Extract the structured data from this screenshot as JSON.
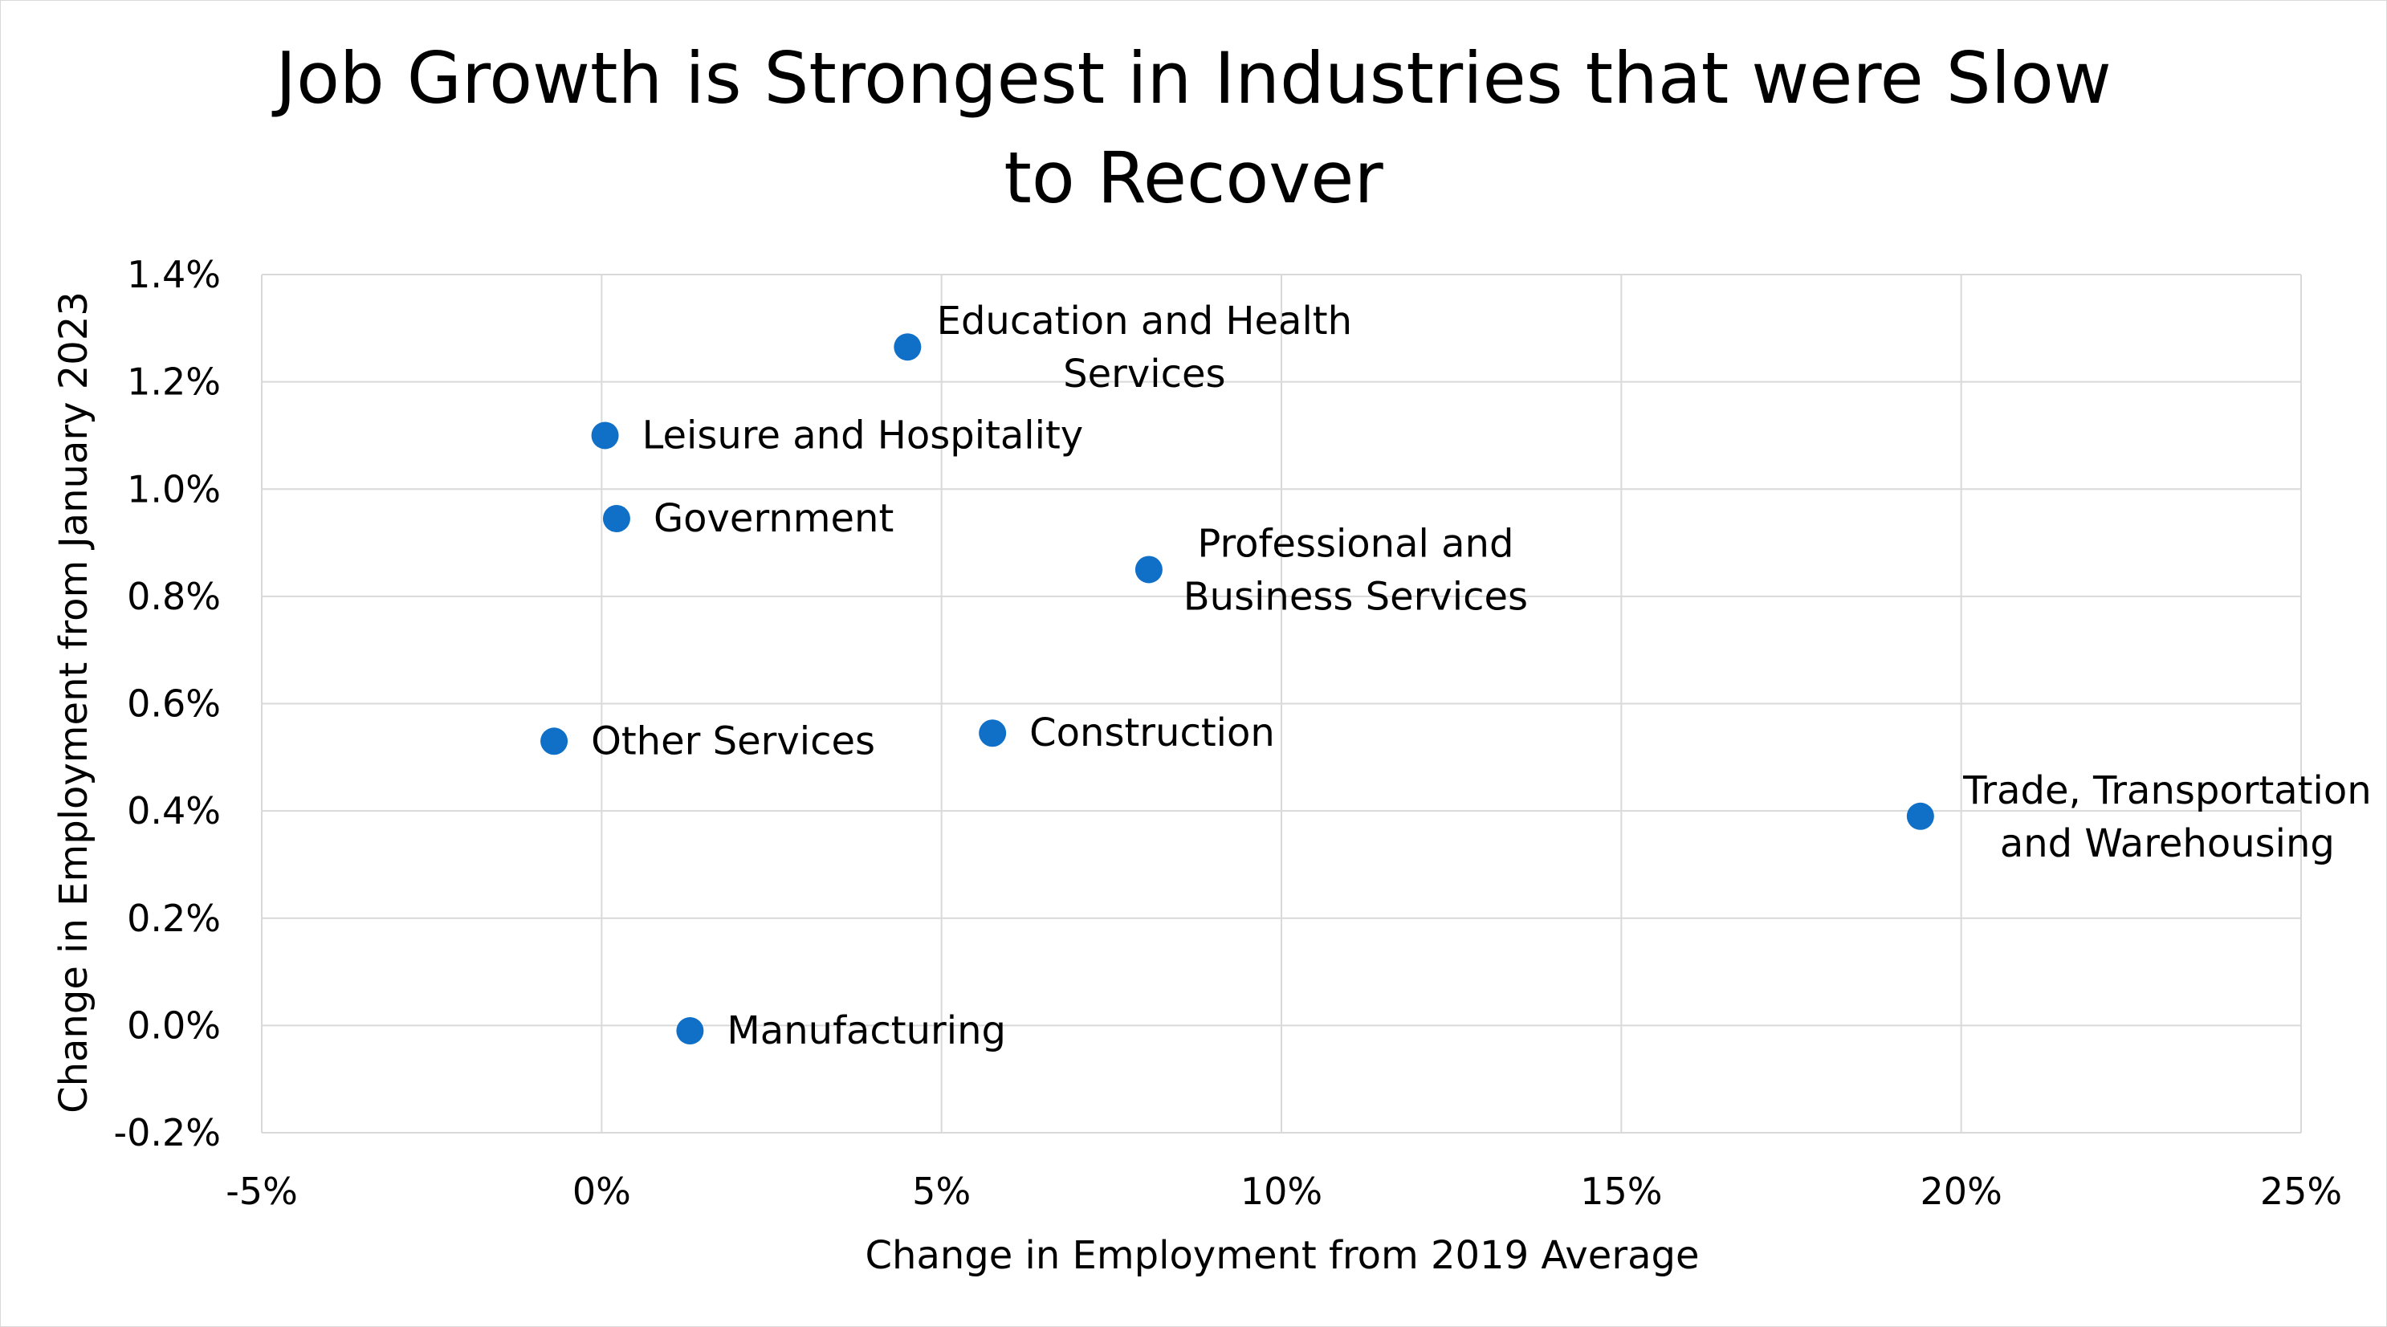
{
  "chart_data": {
    "type": "scatter",
    "title": "Job Growth is Strongest in Industries that were Slow to Recover",
    "title_lines": [
      "Job Growth is Strongest in Industries that were Slow",
      "to Recover"
    ],
    "xlabel": "Change in Employment from 2019 Average",
    "ylabel": "Change in Employment from January 2023",
    "xlim": [
      -5,
      25
    ],
    "ylim": [
      -0.2,
      1.4
    ],
    "grid": true,
    "x_ticks": [
      {
        "value": -5,
        "label": "-5%"
      },
      {
        "value": 0,
        "label": "0%"
      },
      {
        "value": 5,
        "label": "5%"
      },
      {
        "value": 10,
        "label": "10%"
      },
      {
        "value": 15,
        "label": "15%"
      },
      {
        "value": 20,
        "label": "20%"
      },
      {
        "value": 25,
        "label": "25%"
      }
    ],
    "y_ticks": [
      {
        "value": -0.2,
        "label": "-0.2%"
      },
      {
        "value": 0.0,
        "label": "0.0%"
      },
      {
        "value": 0.2,
        "label": "0.2%"
      },
      {
        "value": 0.4,
        "label": "0.4%"
      },
      {
        "value": 0.6,
        "label": "0.6%"
      },
      {
        "value": 0.8,
        "label": "0.8%"
      },
      {
        "value": 1.0,
        "label": "1.0%"
      },
      {
        "value": 1.2,
        "label": "1.2%"
      },
      {
        "value": 1.4,
        "label": "1.4%"
      }
    ],
    "marker_color": "#1070c8",
    "points": [
      {
        "name": "Education and Health Services",
        "label_lines": [
          "Education and Health",
          "Services"
        ],
        "x": 4.5,
        "y": 1.265,
        "label_align": "center"
      },
      {
        "name": "Leisure and Hospitality",
        "label_lines": [
          "Leisure and Hospitality"
        ],
        "x": 0.05,
        "y": 1.1,
        "label_align": "start"
      },
      {
        "name": "Government",
        "label_lines": [
          "Government"
        ],
        "x": 0.22,
        "y": 0.945,
        "label_align": "start"
      },
      {
        "name": "Professional and Business Services",
        "label_lines": [
          "Professional and",
          "Business Services"
        ],
        "x": 8.05,
        "y": 0.85,
        "label_align": "center"
      },
      {
        "name": "Other Services",
        "label_lines": [
          "Other Services"
        ],
        "x": -0.7,
        "y": 0.53,
        "label_align": "start"
      },
      {
        "name": "Construction",
        "label_lines": [
          "Construction"
        ],
        "x": 5.75,
        "y": 0.545,
        "label_align": "start"
      },
      {
        "name": "Trade, Transportation and Warehousing",
        "label_lines": [
          "Trade, Transportation",
          "and Warehousing"
        ],
        "x": 19.4,
        "y": 0.39,
        "label_align": "center"
      },
      {
        "name": "Manufacturing",
        "label_lines": [
          "Manufacturing"
        ],
        "x": 1.3,
        "y": -0.01,
        "label_align": "start"
      }
    ]
  }
}
